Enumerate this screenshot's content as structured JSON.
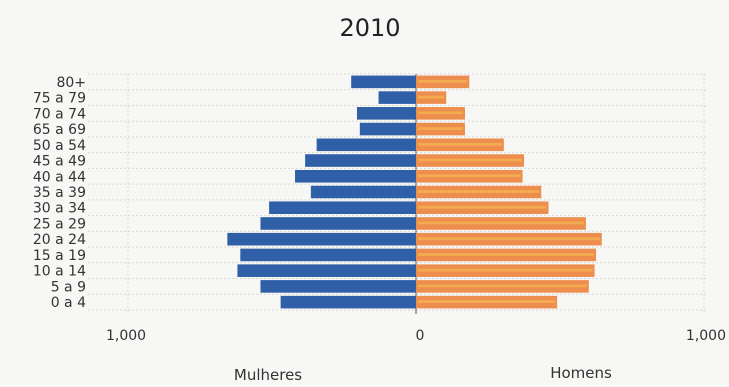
{
  "chart_data": {
    "type": "bar",
    "orientation": "horizontal-population-pyramid",
    "title": "2010",
    "categories": [
      "80+",
      "75 a 79",
      "70 a 74",
      "65 a 69",
      "50 a 54",
      "45 a 49",
      "40 a 44",
      "35 a 39",
      "30 a 34",
      "25 a 29",
      "20 a 24",
      "15 a 19",
      "10 a 14",
      "5 a 9",
      "0 a 4"
    ],
    "series": [
      {
        "name": "Mulheres",
        "color": "#2f5fa6",
        "values": [
          225,
          130,
          205,
          195,
          345,
          385,
          420,
          365,
          510,
          540,
          655,
          610,
          620,
          540,
          470
        ]
      },
      {
        "name": "Homens",
        "color": "#ee8e4e",
        "highlight_color": "#f6c451",
        "values": [
          185,
          105,
          170,
          170,
          305,
          375,
          370,
          435,
          460,
          590,
          645,
          625,
          620,
          600,
          490
        ]
      }
    ],
    "xticks": [
      {
        "value": -1000,
        "label": "1,000"
      },
      {
        "value": 0,
        "label": "0"
      },
      {
        "value": 1000,
        "label": "1,000"
      }
    ],
    "xlim": [
      -1000,
      1000
    ],
    "grid": true,
    "side_labels": {
      "left": "Mulheres",
      "right": "Homens"
    }
  }
}
